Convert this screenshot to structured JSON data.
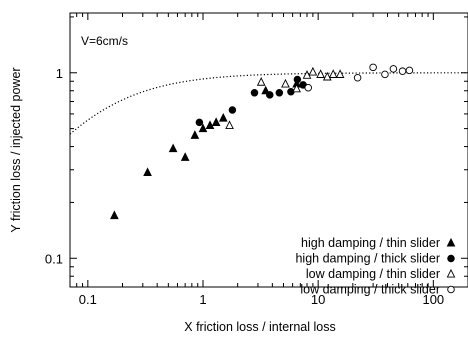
{
  "chart_data": {
    "type": "scatter",
    "title": "",
    "annotation": "V=6cm/s",
    "xlabel": "X friction loss / internal loss",
    "ylabel": "Y friction loss / injected power",
    "x_scale": "log",
    "y_scale": "log",
    "xlim": [
      0.07,
      200
    ],
    "ylim": [
      0.07,
      2.1
    ],
    "x_ticks": [
      {
        "value": 0.1,
        "label": "0.1"
      },
      {
        "value": 1,
        "label": "1"
      },
      {
        "value": 10,
        "label": "10"
      },
      {
        "value": 100,
        "label": "100"
      }
    ],
    "y_ticks": [
      {
        "value": 0.1,
        "label": "0.1"
      },
      {
        "value": 1,
        "label": "1"
      }
    ],
    "grid": false,
    "legend_position": "bottom-right",
    "series": [
      {
        "name": "high damping / thin  slider",
        "marker": "filled-triangle",
        "points": [
          [
            0.17,
            0.17
          ],
          [
            0.33,
            0.29
          ],
          [
            0.55,
            0.39
          ],
          [
            0.7,
            0.35
          ],
          [
            0.85,
            0.46
          ],
          [
            1.0,
            0.5
          ],
          [
            1.15,
            0.52
          ],
          [
            1.3,
            0.54
          ],
          [
            1.5,
            0.57
          ],
          [
            3.5,
            0.8
          ],
          [
            6.5,
            0.87
          ]
        ]
      },
      {
        "name": "high damping / thick slider",
        "marker": "filled-circle",
        "points": [
          [
            0.93,
            0.54
          ],
          [
            1.8,
            0.63
          ],
          [
            2.8,
            0.78
          ],
          [
            3.8,
            0.76
          ],
          [
            4.6,
            0.78
          ],
          [
            5.8,
            0.79
          ],
          [
            6.6,
            0.92
          ],
          [
            7.4,
            0.86
          ]
        ]
      },
      {
        "name": "low damping / thin  slider",
        "marker": "open-triangle",
        "points": [
          [
            1.7,
            0.52
          ],
          [
            3.2,
            0.89
          ],
          [
            5.2,
            0.87
          ],
          [
            6.5,
            0.82
          ],
          [
            8.0,
            0.97
          ],
          [
            9.0,
            1.01
          ],
          [
            10.5,
            0.98
          ],
          [
            12.0,
            0.95
          ],
          [
            13.5,
            0.98
          ],
          [
            15.5,
            0.98
          ]
        ]
      },
      {
        "name": "low damping / thick slider",
        "marker": "open-circle",
        "points": [
          [
            8.2,
            0.83
          ],
          [
            22,
            0.94
          ],
          [
            30,
            1.07
          ],
          [
            38,
            0.98
          ],
          [
            45,
            1.05
          ],
          [
            54,
            1.02
          ],
          [
            62,
            1.03
          ]
        ]
      }
    ],
    "fit_curve": {
      "style": "dotted",
      "formula": "y = x / (0.08 + x)"
    }
  }
}
